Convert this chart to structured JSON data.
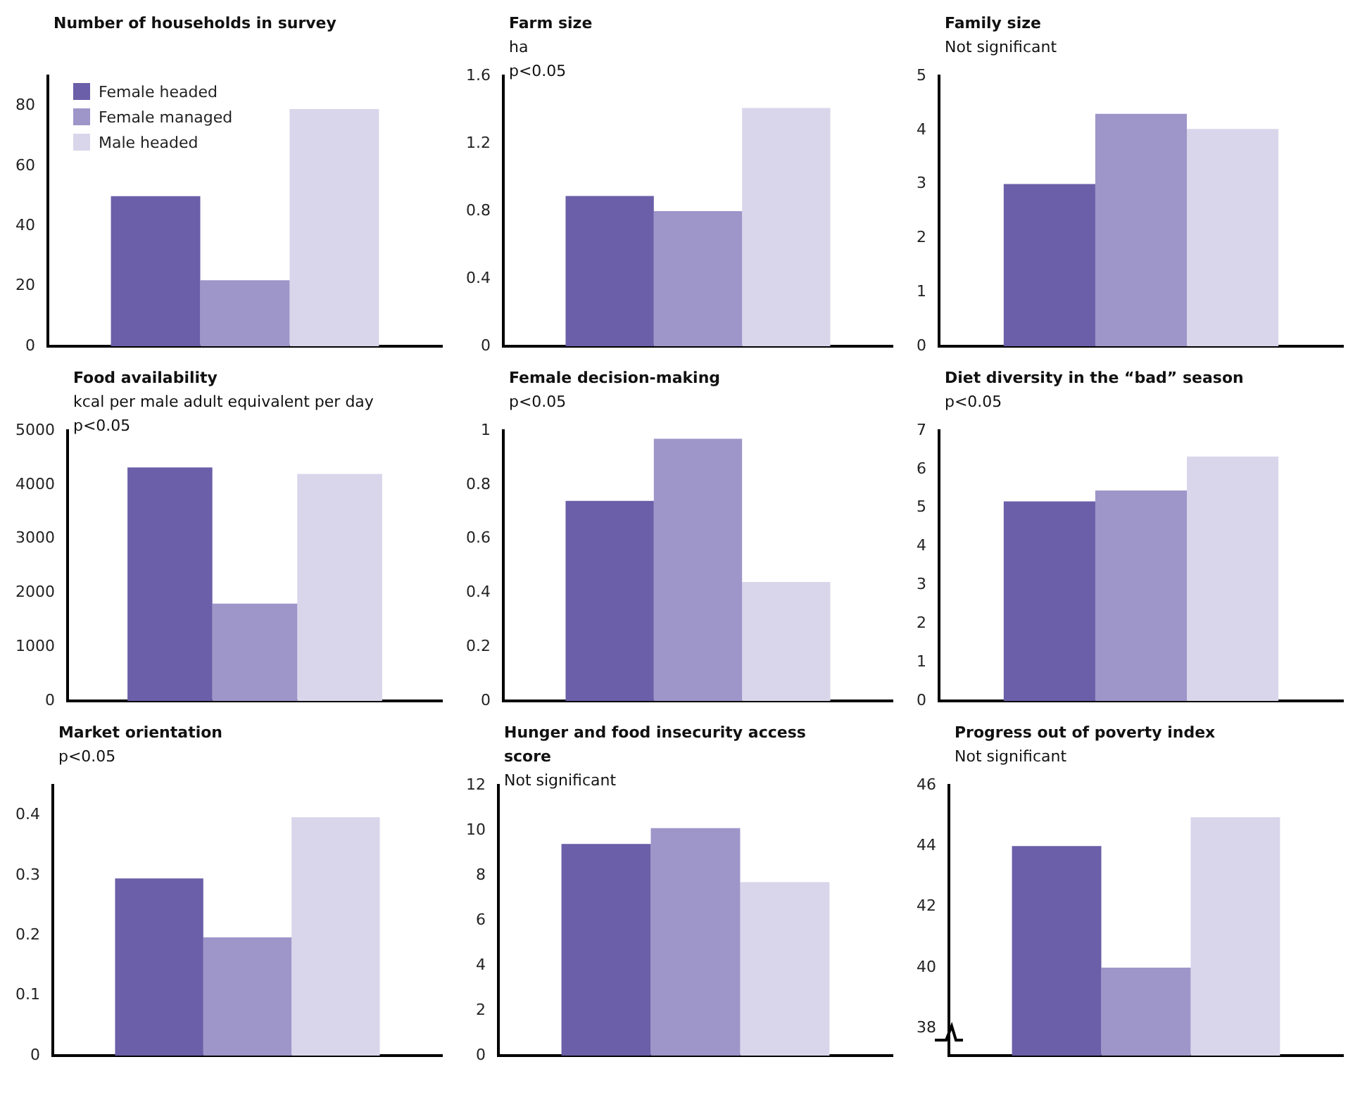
{
  "chart_data": [
    {
      "type": "bar",
      "title": "Number of households in survey",
      "categories": [
        null
      ],
      "legend": "top left",
      "ylim": [
        0,
        90
      ],
      "yticks": [
        0,
        20,
        40,
        60,
        80
      ],
      "series": [
        {
          "name": "Female headed",
          "color": "#6a5fa8",
          "values": [
            50
          ]
        },
        {
          "name": "Female managed",
          "color": "#9e95c9",
          "values": [
            22
          ]
        },
        {
          "name": "Male headed",
          "color": "#d9d6eb",
          "values": [
            79
          ]
        }
      ]
    },
    {
      "type": "bar",
      "title": "Farm size",
      "subtitle": "ha\np<0.05",
      "categories": [
        null
      ],
      "ylim": [
        0,
        1.6
      ],
      "yticks": [
        0,
        0.4,
        0.8,
        1.2,
        1.6
      ],
      "series": [
        {
          "color": "#6a5fa8",
          "values": [
            0.89
          ]
        },
        {
          "color": "#9e95c9",
          "values": [
            0.8
          ]
        },
        {
          "color": "#d9d6eb",
          "values": [
            1.41
          ]
        }
      ]
    },
    {
      "type": "bar",
      "title": "Family size",
      "subtitle": "Not significant",
      "categories": [
        null
      ],
      "ylim": [
        0,
        5
      ],
      "yticks": [
        0,
        1,
        2,
        3,
        4,
        5
      ],
      "series": [
        {
          "color": "#6a5fa8",
          "values": [
            3.0
          ]
        },
        {
          "color": "#9e95c9",
          "values": [
            4.3
          ]
        },
        {
          "color": "#d9d6eb",
          "values": [
            4.02
          ]
        }
      ]
    },
    {
      "type": "bar",
      "title": "Food availability",
      "subtitle": "kcal per male adult equivalent per day\np<0.05",
      "categories": [
        null
      ],
      "ylim": [
        0,
        5000
      ],
      "yticks": [
        0,
        1000,
        2000,
        3000,
        4000,
        5000
      ],
      "series": [
        {
          "color": "#6a5fa8",
          "values": [
            4320
          ]
        },
        {
          "color": "#9e95c9",
          "values": [
            1800
          ]
        },
        {
          "color": "#d9d6eb",
          "values": [
            4200
          ]
        }
      ]
    },
    {
      "type": "bar",
      "title": "Female decision-making",
      "subtitle": "p<0.05",
      "categories": [
        null
      ],
      "ylim": [
        0,
        1
      ],
      "yticks": [
        0,
        0.2,
        0.4,
        0.6,
        0.8,
        1
      ],
      "series": [
        {
          "color": "#6a5fa8",
          "values": [
            0.74
          ]
        },
        {
          "color": "#9e95c9",
          "values": [
            0.97
          ]
        },
        {
          "color": "#d9d6eb",
          "values": [
            0.44
          ]
        }
      ]
    },
    {
      "type": "bar",
      "title": "Diet diversity in the “bad” season",
      "subtitle": "p<0.05",
      "categories": [
        null
      ],
      "ylim": [
        0,
        7
      ],
      "yticks": [
        0,
        1,
        2,
        3,
        4,
        5,
        6,
        7
      ],
      "series": [
        {
          "color": "#6a5fa8",
          "values": [
            5.17
          ]
        },
        {
          "color": "#9e95c9",
          "values": [
            5.45
          ]
        },
        {
          "color": "#d9d6eb",
          "values": [
            6.33
          ]
        }
      ]
    },
    {
      "type": "bar",
      "title": "Market orientation",
      "subtitle": "p<0.05",
      "categories": [
        null
      ],
      "ylim": [
        0,
        0.45
      ],
      "yticks": [
        0,
        0.1,
        0.2,
        0.3,
        0.4
      ],
      "series": [
        {
          "color": "#6a5fa8",
          "values": [
            0.295
          ]
        },
        {
          "color": "#9e95c9",
          "values": [
            0.197
          ]
        },
        {
          "color": "#d9d6eb",
          "values": [
            0.397
          ]
        }
      ]
    },
    {
      "type": "bar",
      "title": "Hunger and food insecurity access score",
      "subtitle": "Not significant",
      "categories": [
        null
      ],
      "ylim": [
        0,
        12
      ],
      "yticks": [
        0,
        2,
        4,
        6,
        8,
        10,
        12
      ],
      "series": [
        {
          "color": "#6a5fa8",
          "values": [
            9.4
          ]
        },
        {
          "color": "#9e95c9",
          "values": [
            10.1
          ]
        },
        {
          "color": "#d9d6eb",
          "values": [
            7.7
          ]
        }
      ]
    },
    {
      "type": "bar",
      "title": "Progress out of poverty index",
      "subtitle": "Not significant",
      "categories": [
        null
      ],
      "ylim": [
        37.1,
        46
      ],
      "yticks": [
        38,
        40,
        42,
        44,
        46
      ],
      "series": [
        {
          "color": "#6a5fa8",
          "values": [
            44.0
          ]
        },
        {
          "color": "#9e95c9",
          "values": [
            40.0
          ]
        },
        {
          "color": "#d9d6eb",
          "values": [
            44.95
          ]
        }
      ]
    }
  ]
}
